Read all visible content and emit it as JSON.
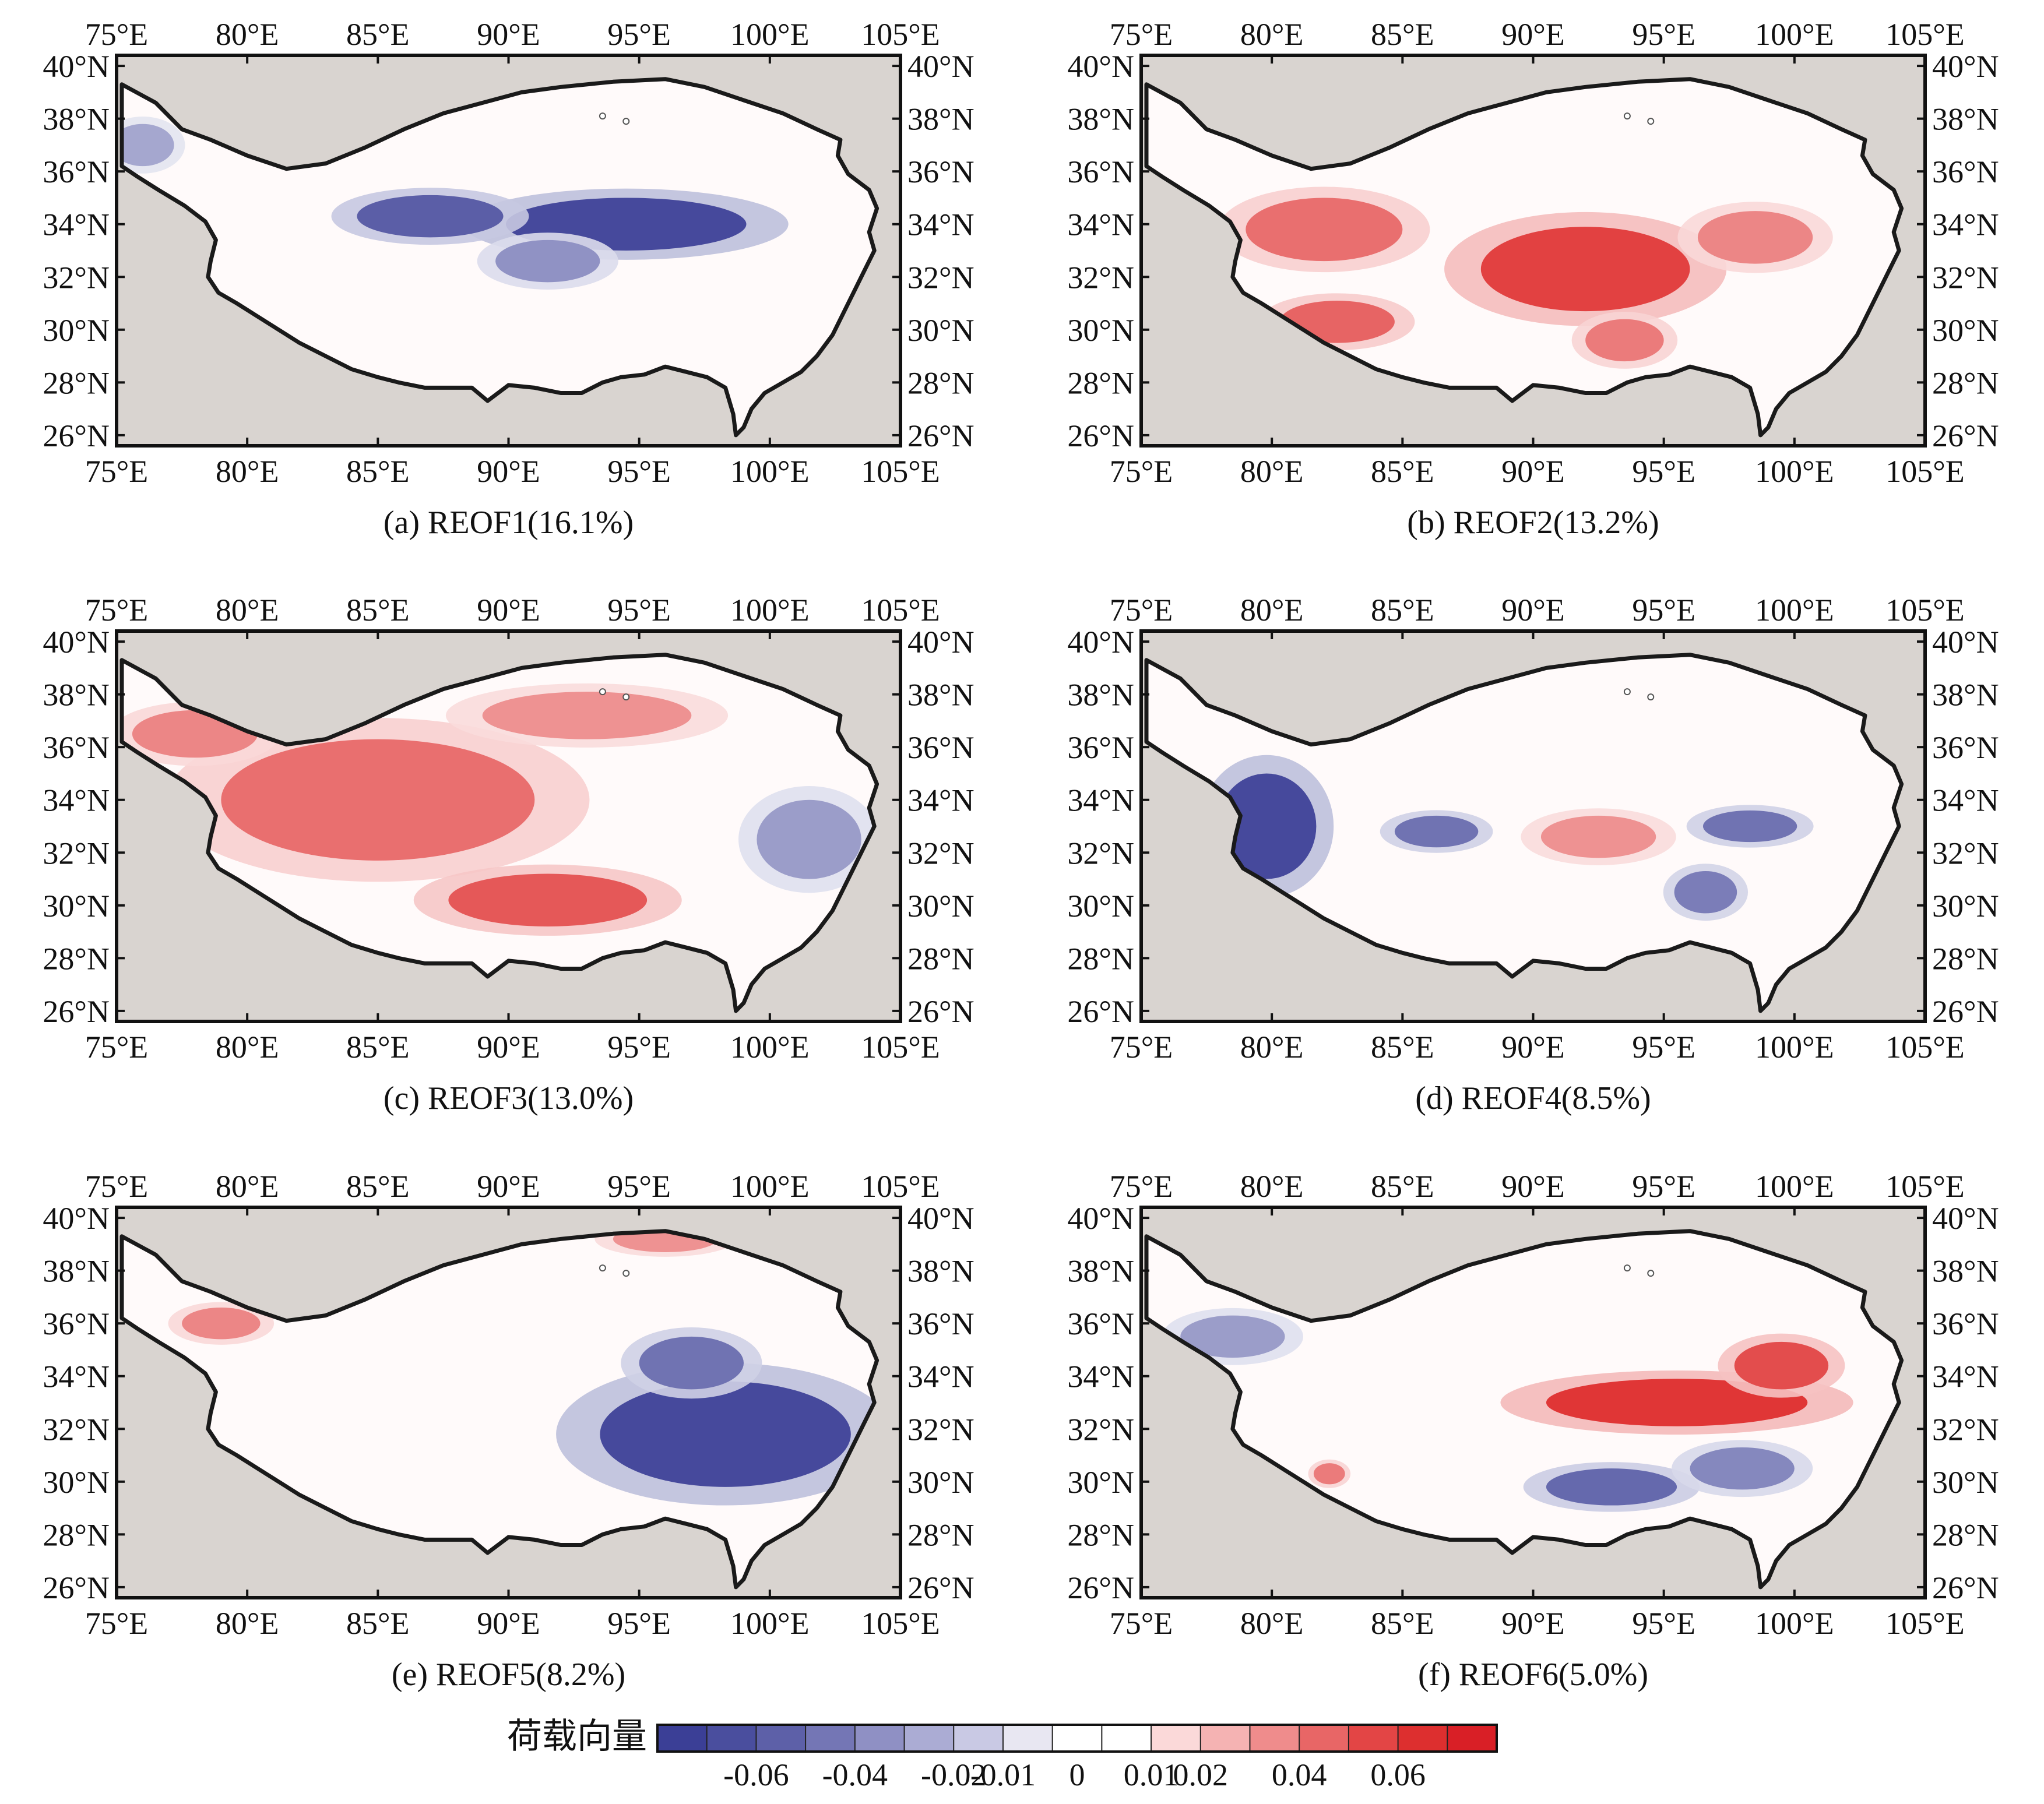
{
  "panels": [
    {
      "id": "a",
      "caption": "(a) REOF1(16.1%)"
    },
    {
      "id": "b",
      "caption": "(b) REOF2(13.2%)"
    },
    {
      "id": "c",
      "caption": "(c) REOF3(13.0%)"
    },
    {
      "id": "d",
      "caption": "(d) REOF4(8.5%)"
    },
    {
      "id": "e",
      "caption": "(e) REOF5(8.2%)"
    },
    {
      "id": "f",
      "caption": "(f) REOF6(5.0%)"
    }
  ],
  "axes": {
    "lon_labels": [
      "75°E",
      "80°E",
      "85°E",
      "90°E",
      "95°E",
      "100°E",
      "105°E"
    ],
    "lat_labels": [
      "40°N",
      "38°N",
      "36°N",
      "34°N",
      "32°N",
      "30°N",
      "28°N",
      "26°N"
    ],
    "lon_range": [
      75,
      105
    ],
    "lat_range": [
      25.6,
      40.4
    ]
  },
  "colorbar": {
    "title": "荷载向量",
    "tick_labels": [
      "-0.06",
      "-0.04",
      "-0.02",
      "-0.01",
      "0",
      "0.01",
      "0.02",
      "0.04",
      "0.06"
    ],
    "colors": [
      "#3b3f96",
      "#4a4e9e",
      "#5d60a8",
      "#7476b5",
      "#8f90c4",
      "#abacd4",
      "#c9c9e4",
      "#e8e7f2",
      "#ffffff",
      "#ffffff",
      "#fbd9d9",
      "#f5b3b3",
      "#ef8c8c",
      "#e86666",
      "#e34545",
      "#dd2f2f",
      "#d91f26"
    ]
  },
  "map_style": {
    "ocean_gray": "#d9d4d0",
    "plateau_fill": "#fffafa",
    "border_color": "#1a1a1a",
    "negative_color": "#3b3f96",
    "positive_color": "#de2a2a"
  },
  "chart_data": [
    {
      "type": "heatmap",
      "title": "(a) REOF1(16.1%)",
      "explained_variance_pct": 16.1,
      "x_range": [
        75,
        105
      ],
      "y_range": [
        26,
        40
      ],
      "features": [
        {
          "sign": "negative",
          "strength": 0.055,
          "center_lon": 94.5,
          "center_lat": 34.0,
          "radius_lon": 4.6,
          "radius_lat": 1.0
        },
        {
          "sign": "negative",
          "strength": 0.045,
          "center_lon": 87.0,
          "center_lat": 34.3,
          "radius_lon": 2.8,
          "radius_lat": 0.8
        },
        {
          "sign": "negative",
          "strength": 0.02,
          "center_lon": 91.5,
          "center_lat": 32.6,
          "radius_lon": 2.0,
          "radius_lat": 0.8
        },
        {
          "sign": "negative",
          "strength": 0.01,
          "center_lon": 76.0,
          "center_lat": 37.0,
          "radius_lon": 1.2,
          "radius_lat": 0.8
        }
      ]
    },
    {
      "type": "heatmap",
      "title": "(b) REOF2(13.2%)",
      "explained_variance_pct": 13.2,
      "x_range": [
        75,
        105
      ],
      "y_range": [
        26,
        40
      ],
      "features": [
        {
          "sign": "positive",
          "strength": 0.05,
          "center_lon": 92.0,
          "center_lat": 32.3,
          "radius_lon": 4.0,
          "radius_lat": 1.6
        },
        {
          "sign": "positive",
          "strength": 0.03,
          "center_lon": 82.0,
          "center_lat": 33.8,
          "radius_lon": 3.0,
          "radius_lat": 1.2
        },
        {
          "sign": "positive",
          "strength": 0.035,
          "center_lon": 82.5,
          "center_lat": 30.3,
          "radius_lon": 2.2,
          "radius_lat": 0.8
        },
        {
          "sign": "positive",
          "strength": 0.02,
          "center_lon": 98.5,
          "center_lat": 33.5,
          "radius_lon": 2.2,
          "radius_lat": 1.0
        },
        {
          "sign": "positive",
          "strength": 0.025,
          "center_lon": 93.5,
          "center_lat": 29.6,
          "radius_lon": 1.5,
          "radius_lat": 0.8
        }
      ]
    },
    {
      "type": "heatmap",
      "title": "(c) REOF3(13.0%)",
      "explained_variance_pct": 13.0,
      "x_range": [
        75,
        105
      ],
      "y_range": [
        26,
        40
      ],
      "features": [
        {
          "sign": "positive",
          "strength": 0.03,
          "center_lon": 85.0,
          "center_lat": 34.0,
          "radius_lon": 6.0,
          "radius_lat": 2.3
        },
        {
          "sign": "positive",
          "strength": 0.04,
          "center_lon": 91.5,
          "center_lat": 30.2,
          "radius_lon": 3.8,
          "radius_lat": 1.0
        },
        {
          "sign": "positive",
          "strength": 0.02,
          "center_lon": 78.0,
          "center_lat": 36.5,
          "radius_lon": 2.4,
          "radius_lat": 0.9
        },
        {
          "sign": "positive",
          "strength": 0.015,
          "center_lon": 93.0,
          "center_lat": 37.2,
          "radius_lon": 4.0,
          "radius_lat": 0.9
        },
        {
          "sign": "negative",
          "strength": 0.015,
          "center_lon": 101.5,
          "center_lat": 32.5,
          "radius_lon": 2.0,
          "radius_lat": 1.5
        }
      ]
    },
    {
      "type": "heatmap",
      "title": "(d) REOF4(8.5%)",
      "explained_variance_pct": 8.5,
      "x_range": [
        75,
        105
      ],
      "y_range": [
        26,
        40
      ],
      "features": [
        {
          "sign": "negative",
          "strength": 0.055,
          "center_lon": 79.8,
          "center_lat": 33.0,
          "radius_lon": 1.9,
          "radius_lat": 2.0
        },
        {
          "sign": "negative",
          "strength": 0.035,
          "center_lon": 86.3,
          "center_lat": 32.8,
          "radius_lon": 1.6,
          "radius_lat": 0.6
        },
        {
          "sign": "negative",
          "strength": 0.035,
          "center_lon": 98.3,
          "center_lat": 33.0,
          "radius_lon": 1.8,
          "radius_lat": 0.6
        },
        {
          "sign": "negative",
          "strength": 0.03,
          "center_lon": 96.6,
          "center_lat": 30.5,
          "radius_lon": 1.2,
          "radius_lat": 0.8
        },
        {
          "sign": "positive",
          "strength": 0.015,
          "center_lon": 92.5,
          "center_lat": 32.6,
          "radius_lon": 2.2,
          "radius_lat": 0.8
        }
      ]
    },
    {
      "type": "heatmap",
      "title": "(e) REOF5(8.2%)",
      "explained_variance_pct": 8.2,
      "x_range": [
        75,
        105
      ],
      "y_range": [
        26,
        40
      ],
      "features": [
        {
          "sign": "negative",
          "strength": 0.055,
          "center_lon": 98.3,
          "center_lat": 31.8,
          "radius_lon": 4.8,
          "radius_lat": 2.0
        },
        {
          "sign": "negative",
          "strength": 0.035,
          "center_lon": 97.0,
          "center_lat": 34.5,
          "radius_lon": 2.0,
          "radius_lat": 1.0
        },
        {
          "sign": "positive",
          "strength": 0.015,
          "center_lon": 96.0,
          "center_lat": 39.2,
          "radius_lon": 2.0,
          "radius_lat": 0.5
        },
        {
          "sign": "positive",
          "strength": 0.02,
          "center_lon": 79.0,
          "center_lat": 36.0,
          "radius_lon": 1.5,
          "radius_lat": 0.6
        }
      ]
    },
    {
      "type": "heatmap",
      "title": "(f) REOF6(5.0%)",
      "explained_variance_pct": 5.0,
      "x_range": [
        75,
        105
      ],
      "y_range": [
        26,
        40
      ],
      "features": [
        {
          "sign": "positive",
          "strength": 0.055,
          "center_lon": 95.5,
          "center_lat": 33.0,
          "radius_lon": 5.0,
          "radius_lat": 0.9
        },
        {
          "sign": "positive",
          "strength": 0.045,
          "center_lon": 99.5,
          "center_lat": 34.4,
          "radius_lon": 1.8,
          "radius_lat": 0.9
        },
        {
          "sign": "negative",
          "strength": 0.04,
          "center_lon": 93.0,
          "center_lat": 29.8,
          "radius_lon": 2.5,
          "radius_lat": 0.7
        },
        {
          "sign": "negative",
          "strength": 0.025,
          "center_lon": 98.0,
          "center_lat": 30.5,
          "radius_lon": 2.0,
          "radius_lat": 0.8
        },
        {
          "sign": "negative",
          "strength": 0.015,
          "center_lon": 78.5,
          "center_lat": 35.5,
          "radius_lon": 2.0,
          "radius_lat": 0.8
        },
        {
          "sign": "positive",
          "strength": 0.025,
          "center_lon": 82.2,
          "center_lat": 30.3,
          "radius_lon": 0.6,
          "radius_lat": 0.4
        }
      ]
    }
  ]
}
